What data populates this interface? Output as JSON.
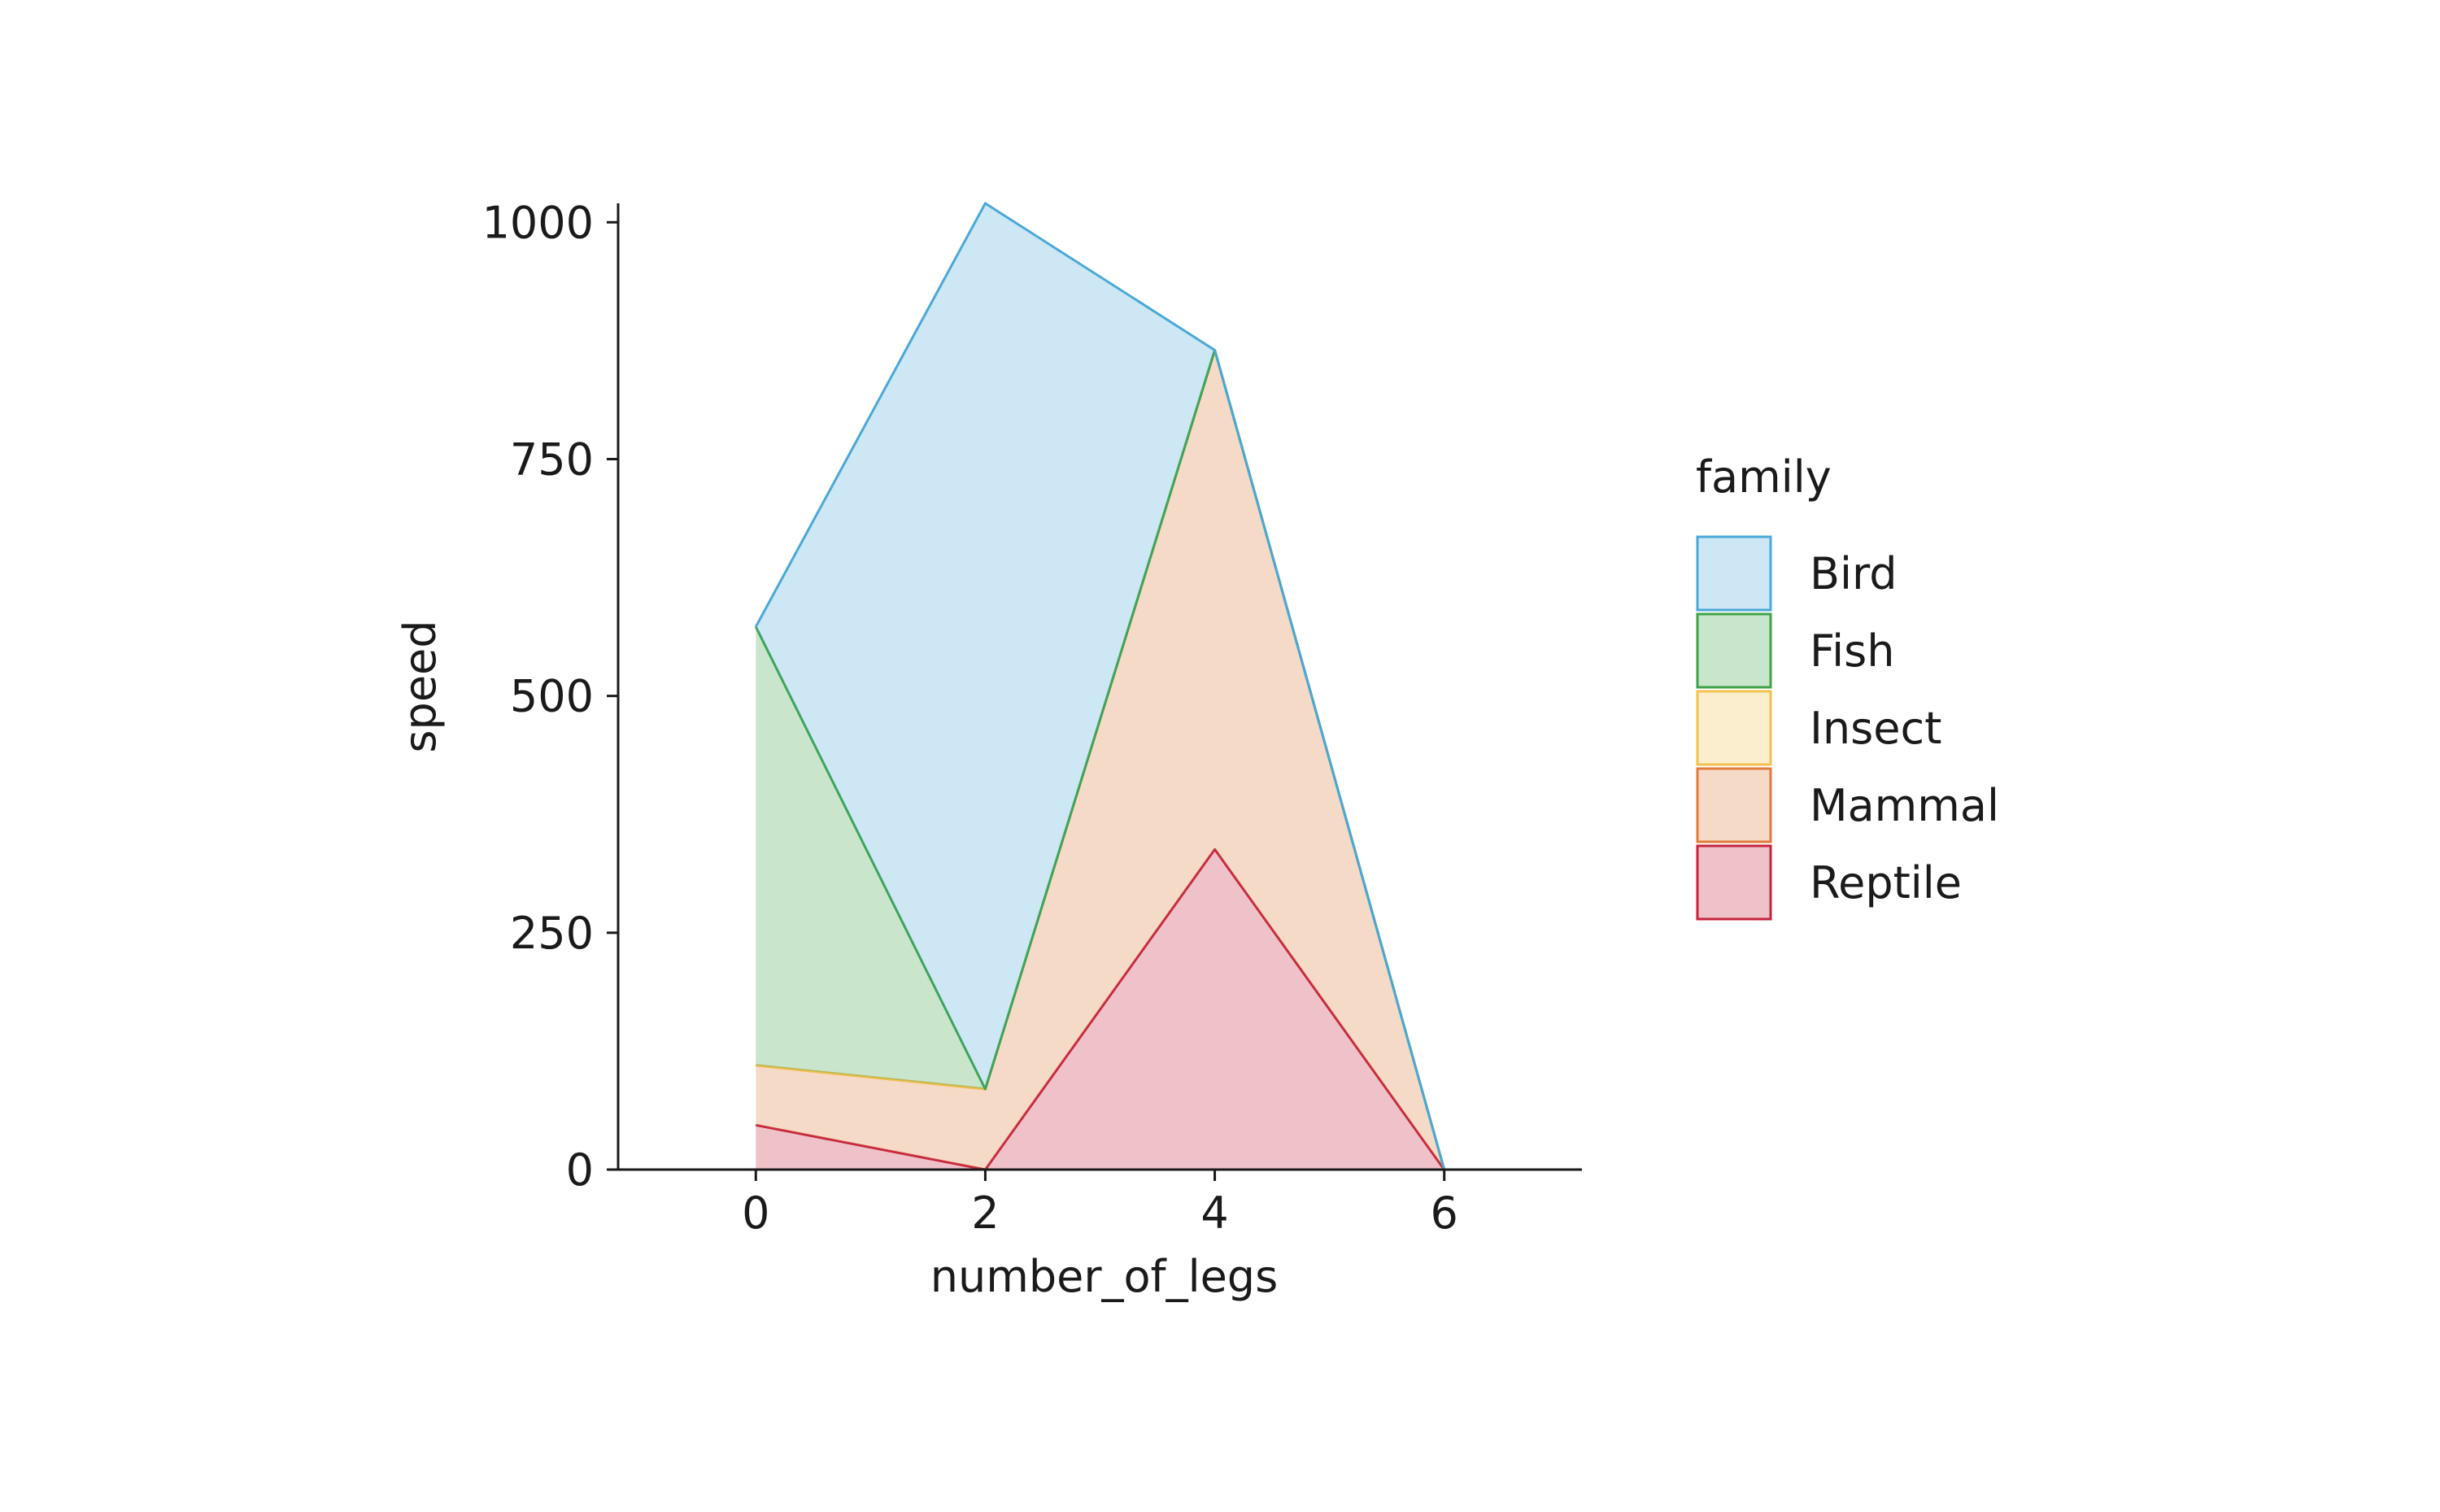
{
  "chart_data": {
    "type": "area",
    "stacked": true,
    "x": [
      0,
      2,
      4,
      6
    ],
    "xlabel": "number_of_legs",
    "ylabel": "speed",
    "xlim": [
      -1.2,
      7.2
    ],
    "ylim": [
      0,
      1020
    ],
    "xticks": [
      0,
      2,
      4,
      6
    ],
    "yticks": [
      0,
      250,
      500,
      750,
      1000
    ],
    "grid": false,
    "legend": {
      "title": "family",
      "placement": "right",
      "entries": [
        "Bird",
        "Fish",
        "Insect",
        "Mammal",
        "Reptile"
      ]
    },
    "series": [
      {
        "name": "Reptile",
        "color": "#c4223e",
        "values": [
          47,
          0,
          338,
          0
        ]
      },
      {
        "name": "Mammal",
        "color": "#e07b39",
        "values": [
          63,
          85,
          527,
          0
        ]
      },
      {
        "name": "Insect",
        "color": "#f2c14e",
        "values": [
          0,
          0,
          0,
          0
        ]
      },
      {
        "name": "Fish",
        "color": "#3ea348",
        "values": [
          463,
          0,
          0,
          0
        ]
      },
      {
        "name": "Bird",
        "color": "#4aa8d8",
        "values": [
          0,
          935,
          0,
          0
        ]
      }
    ]
  }
}
